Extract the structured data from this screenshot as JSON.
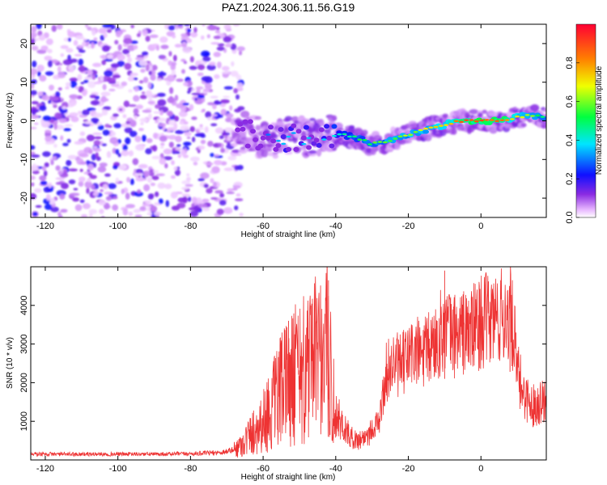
{
  "title": "PAZ1.2024.306.11.56.G19",
  "chart_data": [
    {
      "type": "heatmap",
      "title": "PAZ1.2024.306.11.56.G19",
      "xlabel": "Height of straight line (km)",
      "ylabel": "Frequency (Hz)",
      "xlim": [
        -124,
        18
      ],
      "ylim": [
        -25,
        25
      ],
      "xticks": [
        -120,
        -100,
        -80,
        -60,
        -40,
        -20,
        0
      ],
      "yticks": [
        -20,
        -10,
        0,
        10,
        20
      ],
      "colorbar": {
        "label": "Normalized spectral amplitude",
        "range": [
          0,
          1
        ],
        "ticks": [
          0.0,
          0.2,
          0.4,
          0.6,
          0.8
        ],
        "colormap": "rainbow (magenta-blue-cyan-green-yellow-red)",
        "placement": "right"
      },
      "noise_region": {
        "x_range": [
          -124,
          -68
        ],
        "y_range": [
          -25,
          25
        ],
        "amplitude_range": [
          0.0,
          0.15
        ]
      },
      "signal_ridge": {
        "x": [
          -66,
          -62,
          -58,
          -54,
          -50,
          -46,
          -42,
          -38,
          -34,
          -30,
          -26,
          -22,
          -18,
          -14,
          -10,
          -6,
          -2,
          2,
          6,
          10,
          14,
          18
        ],
        "y": [
          -3,
          -4,
          -5,
          -4.5,
          -4,
          -3.5,
          -3.5,
          -3.5,
          -4.5,
          -6,
          -5.5,
          -4,
          -3,
          -2,
          -1,
          0,
          0,
          0,
          0,
          1,
          1.5,
          1
        ],
        "amplitude": [
          0.1,
          0.2,
          0.3,
          0.35,
          0.35,
          0.35,
          0.4,
          0.45,
          0.5,
          0.55,
          0.6,
          0.62,
          0.65,
          0.7,
          0.75,
          0.85,
          0.95,
          0.92,
          0.9,
          0.7,
          0.6,
          0.5
        ]
      }
    },
    {
      "type": "line",
      "xlabel": "Height of straight line (km)",
      "ylabel": "SNR (10 * v/v)",
      "xlim": [
        -124,
        18
      ],
      "ylim": [
        0,
        5000
      ],
      "xticks": [
        -120,
        -100,
        -80,
        -60,
        -40,
        -20,
        0
      ],
      "yticks": [
        1000,
        2000,
        3000,
        4000
      ],
      "color": "#ee3333",
      "series": [
        {
          "x": [
            -124,
            -110,
            -100,
            -90,
            -80,
            -72,
            -68,
            -66,
            -64,
            -62,
            -60,
            -58,
            -56,
            -54,
            -52,
            -50,
            -48,
            -46,
            -44,
            -42,
            -40,
            -38,
            -36,
            -34,
            -32,
            -30,
            -28,
            -26,
            -24,
            -22,
            -20,
            -18,
            -16,
            -14,
            -12,
            -10,
            -8,
            -6,
            -4,
            -2,
            0,
            2,
            4,
            6,
            8,
            9,
            10,
            12,
            14,
            16,
            18
          ],
          "y": [
            150,
            150,
            150,
            150,
            160,
            190,
            260,
            400,
            600,
            800,
            1000,
            1300,
            1600,
            1900,
            2100,
            2200,
            2300,
            2300,
            2200,
            2600,
            1200,
            900,
            600,
            500,
            600,
            800,
            1000,
            2300,
            2500,
            2400,
            2700,
            2800,
            2700,
            2900,
            3100,
            3500,
            3200,
            3300,
            3300,
            3400,
            3600,
            3600,
            3700,
            3700,
            3800,
            3300,
            2200,
            1700,
            1400,
            1500,
            1600
          ],
          "peaks": [
            {
              "x": -42,
              "y": 4650
            },
            {
              "x": -53,
              "y": 3600
            },
            {
              "x": -10,
              "y": 4900
            },
            {
              "x": 8,
              "y": 4250
            }
          ]
        }
      ]
    }
  ]
}
